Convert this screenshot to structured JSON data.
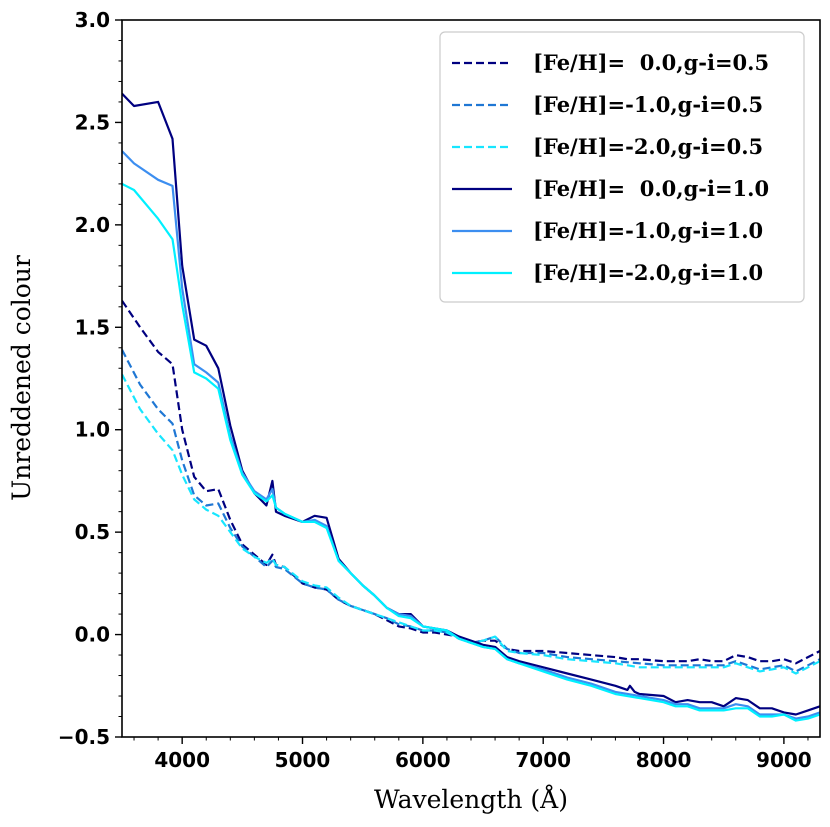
{
  "chart_data": {
    "type": "line",
    "title": "",
    "xlabel": "Wavelength (Å)",
    "ylabel": "Unreddened colour",
    "xlim": [
      3500,
      9300
    ],
    "ylim": [
      -0.5,
      3.0
    ],
    "xticks": [
      4000,
      5000,
      6000,
      7000,
      8000,
      9000
    ],
    "xtick_labels": [
      "4000",
      "5000",
      "6000",
      "7000",
      "8000",
      "9000"
    ],
    "yticks": [
      -0.5,
      0.0,
      0.5,
      1.0,
      1.5,
      2.0,
      2.5,
      3.0
    ],
    "ytick_labels": [
      "−0.5",
      "0.0",
      "0.5",
      "1.0",
      "1.5",
      "2.0",
      "2.5",
      "3.0"
    ],
    "legend_position": "top-right",
    "series": [
      {
        "name": "[Fe/H]=  0.0,g-i=0.5",
        "color": "#000080",
        "dash": "dashed",
        "x": [
          3500,
          3650,
          3800,
          3920,
          4000,
          4100,
          4200,
          4300,
          4400,
          4500,
          4600,
          4700,
          4750,
          4780,
          4850,
          5000,
          5100,
          5200,
          5300,
          5400,
          5500,
          5600,
          5700,
          5800,
          5900,
          6000,
          6100,
          6200,
          6300,
          6400,
          6500,
          6600,
          6700,
          6800,
          7000,
          7200,
          7400,
          7600,
          7700,
          7800,
          8000,
          8100,
          8200,
          8300,
          8400,
          8500,
          8600,
          8700,
          8800,
          8900,
          9000,
          9100,
          9200,
          9300
        ],
        "y": [
          1.63,
          1.5,
          1.38,
          1.32,
          1.0,
          0.77,
          0.7,
          0.71,
          0.56,
          0.44,
          0.39,
          0.34,
          0.39,
          0.34,
          0.33,
          0.25,
          0.23,
          0.22,
          0.17,
          0.14,
          0.12,
          0.1,
          0.07,
          0.04,
          0.03,
          0.01,
          0.01,
          0.0,
          -0.01,
          -0.04,
          -0.03,
          -0.03,
          -0.07,
          -0.08,
          -0.08,
          -0.09,
          -0.1,
          -0.11,
          -0.12,
          -0.12,
          -0.13,
          -0.13,
          -0.13,
          -0.12,
          -0.13,
          -0.13,
          -0.1,
          -0.11,
          -0.13,
          -0.13,
          -0.12,
          -0.14,
          -0.11,
          -0.08
        ]
      },
      {
        "name": "[Fe/H]=-1.0,g-i=0.5",
        "color": "#1f77d4",
        "dash": "dashed",
        "x": [
          3500,
          3650,
          3800,
          3920,
          4000,
          4100,
          4200,
          4300,
          4400,
          4500,
          4600,
          4700,
          4750,
          4780,
          4850,
          5000,
          5100,
          5200,
          5300,
          5400,
          5500,
          5600,
          5700,
          5800,
          5900,
          6000,
          6100,
          6200,
          6300,
          6400,
          6500,
          6600,
          6700,
          6800,
          7000,
          7200,
          7400,
          7600,
          7800,
          8000,
          8200,
          8400,
          8500,
          8600,
          8700,
          8800,
          8900,
          9000,
          9100,
          9200,
          9300
        ],
        "y": [
          1.39,
          1.22,
          1.1,
          1.03,
          0.85,
          0.68,
          0.63,
          0.64,
          0.52,
          0.43,
          0.38,
          0.33,
          0.36,
          0.33,
          0.32,
          0.25,
          0.23,
          0.22,
          0.17,
          0.14,
          0.12,
          0.1,
          0.08,
          0.05,
          0.04,
          0.02,
          0.02,
          0.01,
          -0.01,
          -0.04,
          -0.03,
          -0.01,
          -0.07,
          -0.09,
          -0.09,
          -0.11,
          -0.12,
          -0.13,
          -0.14,
          -0.15,
          -0.15,
          -0.15,
          -0.15,
          -0.13,
          -0.15,
          -0.17,
          -0.16,
          -0.15,
          -0.18,
          -0.15,
          -0.12
        ]
      },
      {
        "name": "[Fe/H]=-2.0,g-i=0.5",
        "color": "#17e6ff",
        "dash": "dashed",
        "x": [
          3500,
          3650,
          3800,
          3920,
          4000,
          4100,
          4200,
          4300,
          4400,
          4500,
          4600,
          4700,
          4750,
          4780,
          4850,
          5000,
          5100,
          5200,
          5300,
          5400,
          5500,
          5600,
          5700,
          5800,
          5900,
          6000,
          6100,
          6200,
          6300,
          6400,
          6500,
          6600,
          6700,
          6800,
          7000,
          7200,
          7400,
          7600,
          7800,
          8000,
          8200,
          8400,
          8500,
          8600,
          8700,
          8800,
          8900,
          9000,
          9100,
          9200,
          9300
        ],
        "y": [
          1.27,
          1.1,
          0.98,
          0.9,
          0.78,
          0.66,
          0.61,
          0.58,
          0.5,
          0.42,
          0.38,
          0.35,
          0.37,
          0.34,
          0.33,
          0.26,
          0.24,
          0.23,
          0.18,
          0.14,
          0.12,
          0.1,
          0.08,
          0.06,
          0.04,
          0.02,
          0.02,
          0.01,
          -0.02,
          -0.04,
          -0.03,
          -0.01,
          -0.08,
          -0.09,
          -0.1,
          -0.12,
          -0.13,
          -0.14,
          -0.16,
          -0.16,
          -0.16,
          -0.16,
          -0.16,
          -0.14,
          -0.16,
          -0.18,
          -0.17,
          -0.16,
          -0.19,
          -0.16,
          -0.13
        ]
      },
      {
        "name": "[Fe/H]=  0.0,g-i=1.0",
        "color": "#000080",
        "dash": "solid",
        "x": [
          3500,
          3600,
          3800,
          3920,
          4000,
          4100,
          4200,
          4300,
          4400,
          4500,
          4600,
          4700,
          4750,
          4780,
          4850,
          5000,
          5100,
          5200,
          5300,
          5400,
          5500,
          5600,
          5700,
          5800,
          5900,
          6000,
          6100,
          6200,
          6300,
          6400,
          6500,
          6600,
          6700,
          6800,
          7000,
          7200,
          7400,
          7600,
          7700,
          7720,
          7760,
          7800,
          8000,
          8100,
          8200,
          8300,
          8400,
          8500,
          8600,
          8700,
          8800,
          8900,
          9000,
          9100,
          9200,
          9300
        ],
        "y": [
          2.64,
          2.58,
          2.6,
          2.42,
          1.8,
          1.44,
          1.41,
          1.3,
          1.02,
          0.8,
          0.69,
          0.63,
          0.75,
          0.6,
          0.58,
          0.55,
          0.58,
          0.57,
          0.37,
          0.3,
          0.24,
          0.19,
          0.13,
          0.1,
          0.1,
          0.04,
          0.03,
          0.02,
          -0.01,
          -0.03,
          -0.05,
          -0.06,
          -0.11,
          -0.13,
          -0.16,
          -0.19,
          -0.22,
          -0.25,
          -0.27,
          -0.25,
          -0.28,
          -0.29,
          -0.3,
          -0.33,
          -0.32,
          -0.33,
          -0.33,
          -0.35,
          -0.31,
          -0.32,
          -0.36,
          -0.36,
          -0.38,
          -0.39,
          -0.37,
          -0.35
        ]
      },
      {
        "name": "[Fe/H]=-1.0,g-i=1.0",
        "color": "#3c8ef0",
        "dash": "solid",
        "x": [
          3500,
          3600,
          3800,
          3920,
          4000,
          4100,
          4200,
          4300,
          4400,
          4500,
          4600,
          4700,
          4750,
          4780,
          4850,
          5000,
          5100,
          5200,
          5300,
          5400,
          5500,
          5600,
          5700,
          5800,
          5900,
          6000,
          6100,
          6200,
          6300,
          6400,
          6500,
          6600,
          6700,
          6800,
          7000,
          7200,
          7400,
          7600,
          7800,
          8000,
          8100,
          8200,
          8300,
          8400,
          8500,
          8600,
          8700,
          8800,
          8900,
          9000,
          9100,
          9200,
          9300
        ],
        "y": [
          2.36,
          2.3,
          2.22,
          2.19,
          1.69,
          1.32,
          1.28,
          1.23,
          0.97,
          0.79,
          0.7,
          0.66,
          0.71,
          0.62,
          0.59,
          0.55,
          0.56,
          0.53,
          0.36,
          0.3,
          0.24,
          0.19,
          0.13,
          0.1,
          0.09,
          0.04,
          0.03,
          0.02,
          -0.02,
          -0.04,
          -0.06,
          -0.07,
          -0.12,
          -0.14,
          -0.17,
          -0.21,
          -0.24,
          -0.28,
          -0.3,
          -0.32,
          -0.34,
          -0.34,
          -0.36,
          -0.36,
          -0.36,
          -0.34,
          -0.35,
          -0.39,
          -0.39,
          -0.39,
          -0.41,
          -0.4,
          -0.38
        ]
      },
      {
        "name": "[Fe/H]=-2.0,g-i=1.0",
        "color": "#00f0ff",
        "dash": "solid",
        "x": [
          3500,
          3600,
          3800,
          3920,
          4000,
          4100,
          4200,
          4300,
          4400,
          4500,
          4600,
          4700,
          4750,
          4780,
          4850,
          5000,
          5100,
          5200,
          5300,
          5400,
          5500,
          5600,
          5700,
          5800,
          5900,
          6000,
          6100,
          6200,
          6300,
          6400,
          6500,
          6600,
          6700,
          6800,
          7000,
          7200,
          7400,
          7600,
          7800,
          8000,
          8100,
          8200,
          8300,
          8400,
          8500,
          8600,
          8700,
          8800,
          8900,
          9000,
          9100,
          9200,
          9300
        ],
        "y": [
          2.2,
          2.17,
          2.03,
          1.93,
          1.61,
          1.28,
          1.25,
          1.2,
          0.95,
          0.78,
          0.69,
          0.65,
          0.68,
          0.62,
          0.59,
          0.55,
          0.55,
          0.52,
          0.36,
          0.3,
          0.24,
          0.19,
          0.13,
          0.09,
          0.08,
          0.04,
          0.03,
          0.02,
          -0.02,
          -0.04,
          -0.06,
          -0.07,
          -0.12,
          -0.14,
          -0.18,
          -0.22,
          -0.25,
          -0.29,
          -0.31,
          -0.33,
          -0.35,
          -0.35,
          -0.37,
          -0.37,
          -0.37,
          -0.36,
          -0.36,
          -0.4,
          -0.4,
          -0.39,
          -0.42,
          -0.41,
          -0.39
        ]
      }
    ]
  }
}
